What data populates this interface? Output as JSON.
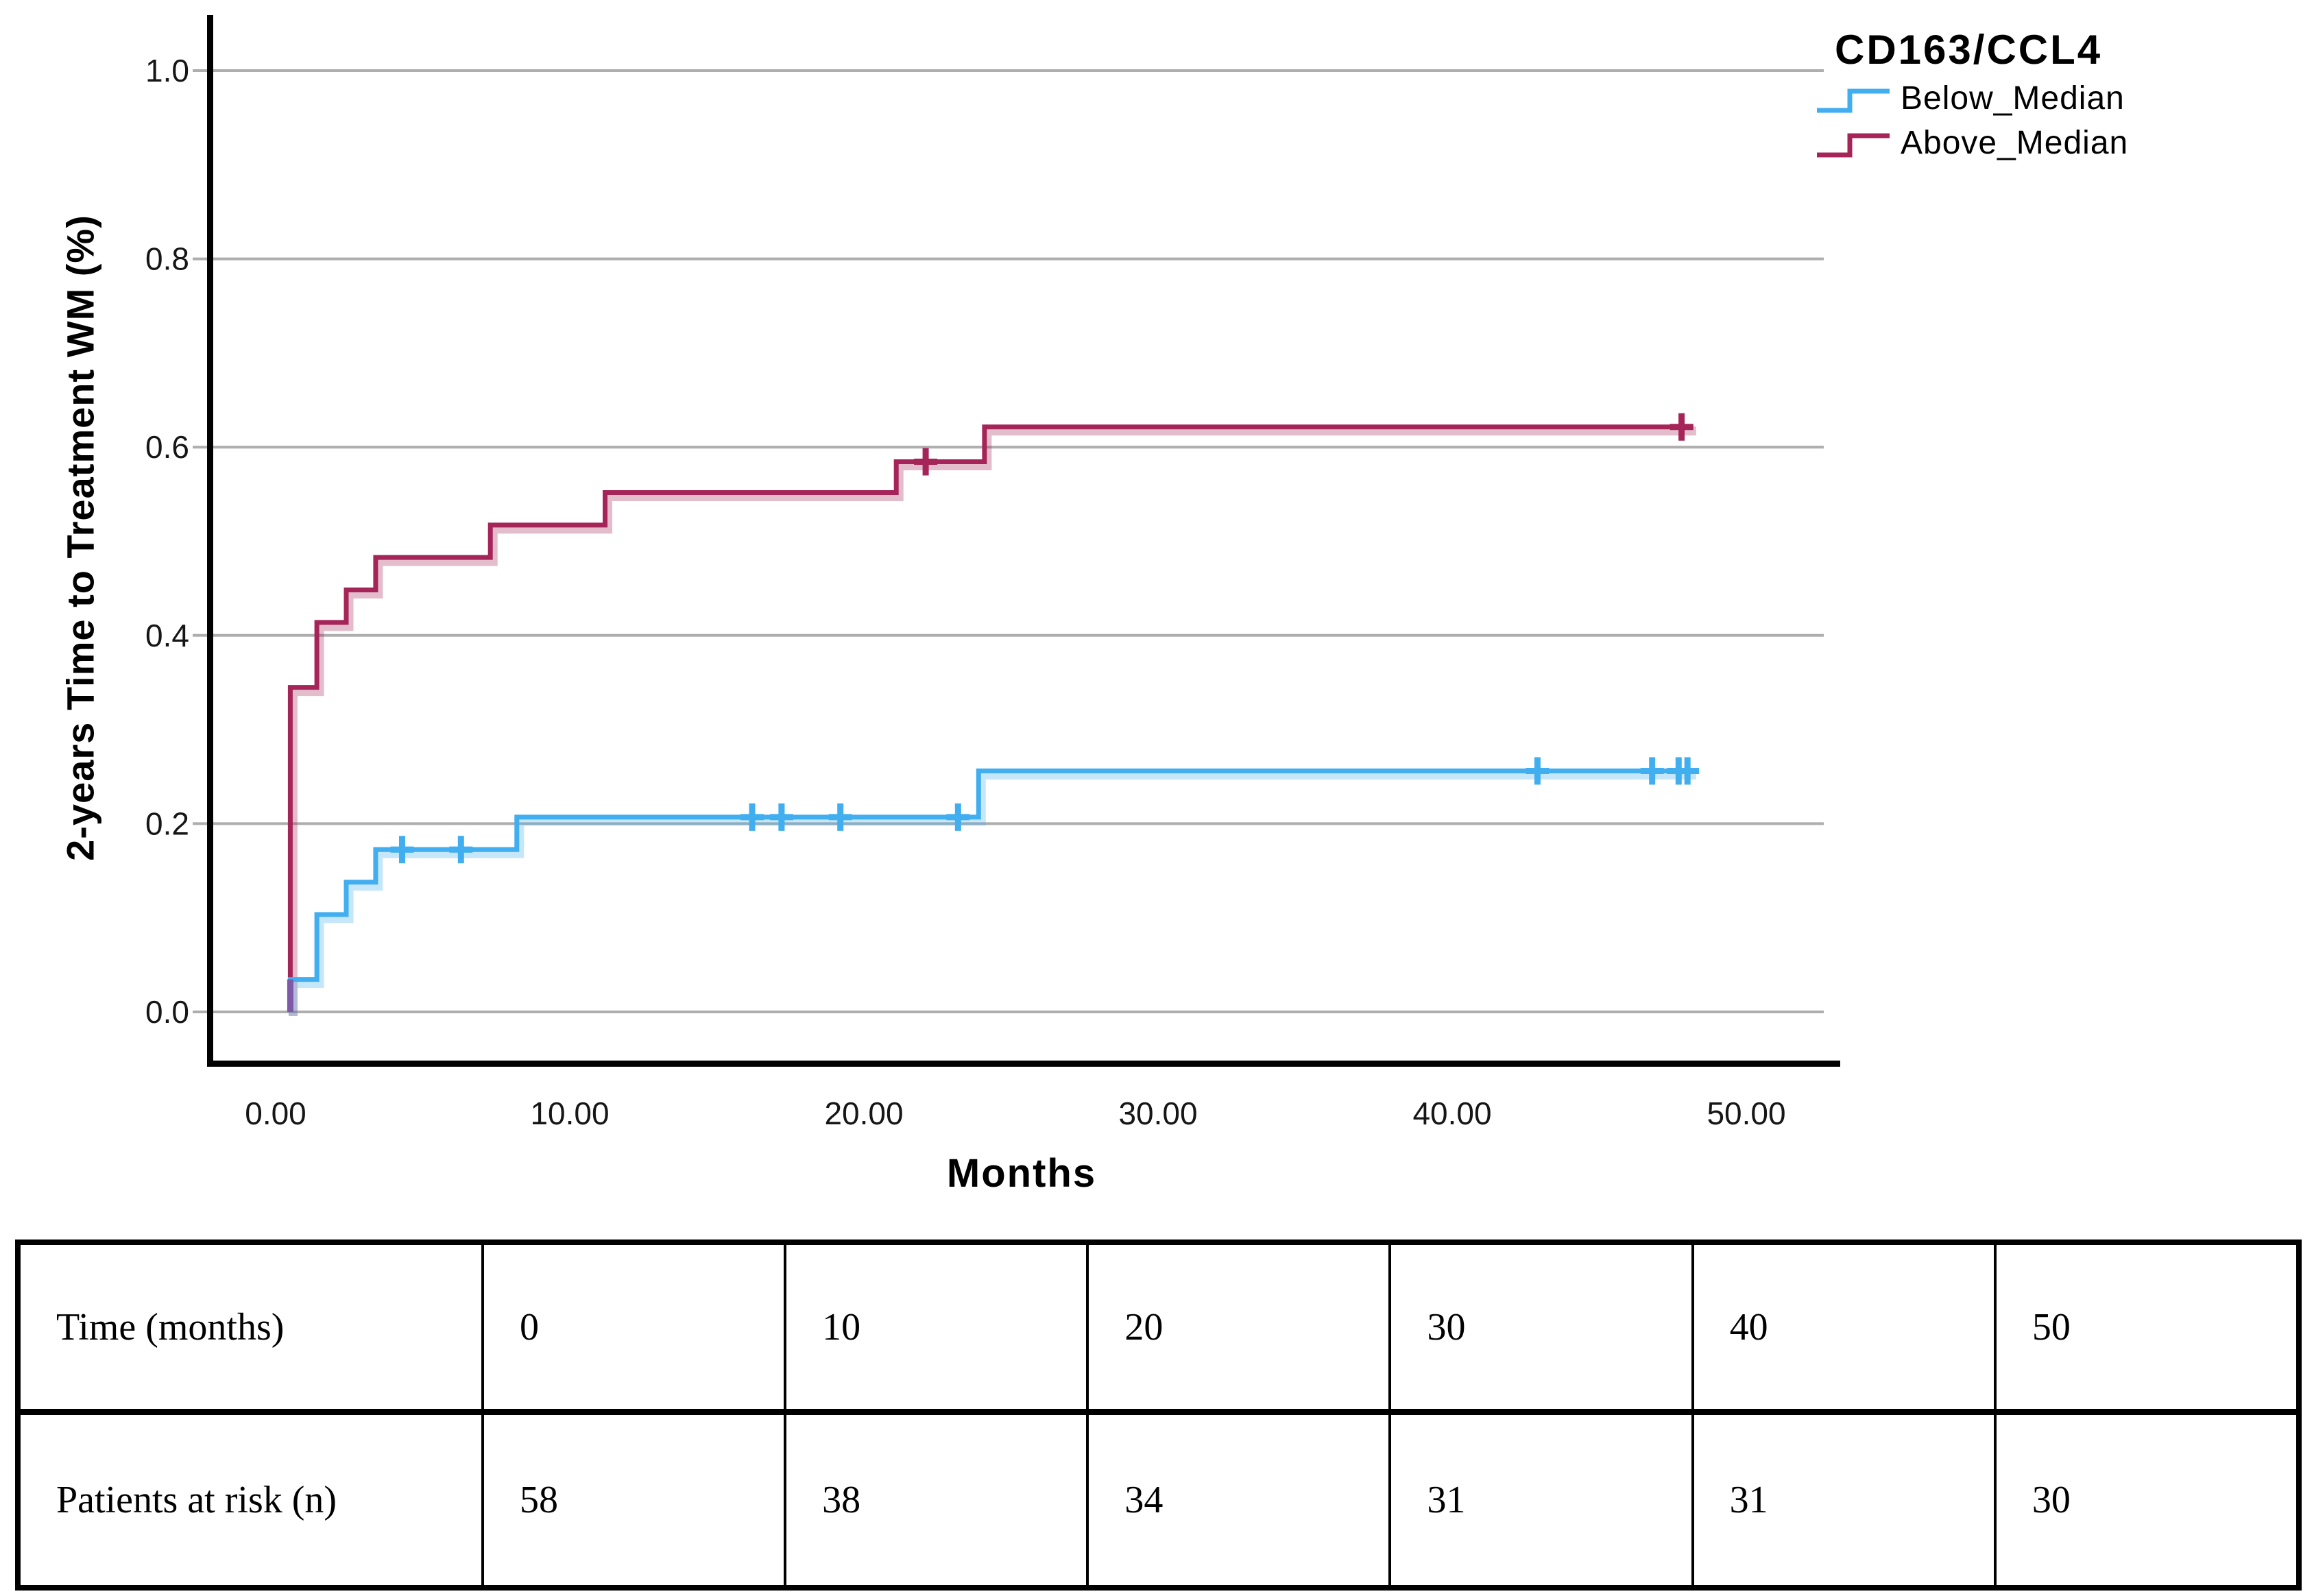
{
  "figure": {
    "background": "#ffffff"
  },
  "chart_data": {
    "type": "line",
    "subtype": "kaplan_meier_step_cumulative_incidence",
    "xlabel": "Months",
    "ylabel": "2-years Time to Treatment WM (%)",
    "legend": {
      "title": "CD163/CCL4",
      "position": "top-right"
    },
    "x_axis": {
      "ticks": [
        0,
        10,
        20,
        30,
        40,
        50
      ],
      "tick_labels": [
        "0.00",
        "10.00",
        "20.00",
        "30.00",
        "40.00",
        "50.00"
      ],
      "range": [
        -2.3,
        53.2
      ]
    },
    "y_axis": {
      "ticks": [
        0,
        0.2,
        0.4,
        0.6,
        0.8,
        1.0
      ],
      "tick_labels": [
        "0.0",
        "0.2",
        "0.4",
        "0.6",
        "0.8",
        "1.0"
      ],
      "range": [
        0,
        1
      ],
      "grid": true
    },
    "colors": {
      "gridline": "#aeaeae",
      "axis": "#000000",
      "below_median": "#41aef0",
      "above_median": "#a52559",
      "overlap": "#7c5aa8"
    },
    "series": [
      {
        "name": "Below_Median",
        "color": "#41aef0",
        "start_month": 0.5,
        "end_month": 48.2,
        "steps": [
          [
            0.5,
            0.0345
          ],
          [
            1.4,
            0.1034
          ],
          [
            2.4,
            0.1379
          ],
          [
            3.4,
            0.1724
          ],
          [
            8.2,
            0.2069
          ],
          [
            23.9,
            0.256
          ]
        ],
        "censor_marks": [
          [
            4.3,
            0.1724
          ],
          [
            6.3,
            0.1724
          ],
          [
            16.2,
            0.2069
          ],
          [
            17.2,
            0.2069
          ],
          [
            19.2,
            0.2069
          ],
          [
            23.2,
            0.2069
          ],
          [
            42.9,
            0.256
          ],
          [
            46.8,
            0.256
          ],
          [
            47.7,
            0.256
          ],
          [
            48.0,
            0.256
          ]
        ]
      },
      {
        "name": "Above_Median",
        "color": "#a52559",
        "start_month": 0.5,
        "end_month": 48.2,
        "steps": [
          [
            0.5,
            0.3448
          ],
          [
            1.4,
            0.4138
          ],
          [
            2.4,
            0.4483
          ],
          [
            3.4,
            0.4828
          ],
          [
            7.3,
            0.5172
          ],
          [
            11.2,
            0.5517
          ],
          [
            21.1,
            0.5845
          ],
          [
            24.1,
            0.6215
          ]
        ],
        "censor_marks": [
          [
            22.1,
            0.5845
          ],
          [
            47.8,
            0.6215
          ]
        ]
      }
    ],
    "overlap": {
      "month": 0.5,
      "from_value": 0,
      "to_value": 0.0345,
      "color": "#7c5aa8"
    }
  },
  "risk_table": {
    "header_label": "Time (months)",
    "row_label": "Patients at risk (n)",
    "times": [
      "0",
      "10",
      "20",
      "30",
      "40",
      "50"
    ],
    "counts": [
      "58",
      "38",
      "34",
      "31",
      "31",
      "30"
    ]
  }
}
